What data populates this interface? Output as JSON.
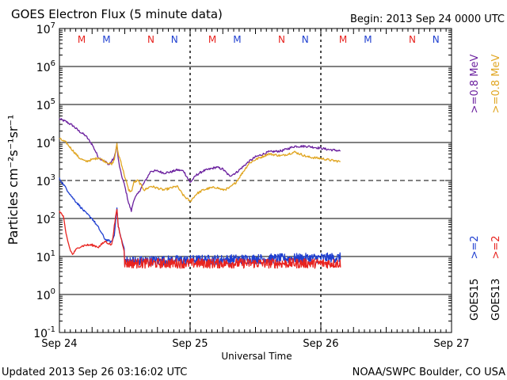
{
  "chart_data": {
    "type": "line",
    "title": "GOES Electron Flux (5 minute data)",
    "begin_label": "Begin: 2013 Sep 24 0000 UTC",
    "xlabel": "Universal Time",
    "ylabel": "Particles cm⁻²s⁻¹sr⁻¹",
    "x_unit": "days since 2013 Sep 24 0000 UTC",
    "xlim": [
      0,
      3
    ],
    "x_ticks": [
      {
        "value": 0,
        "label": "Sep 24"
      },
      {
        "value": 1,
        "label": "Sep 25"
      },
      {
        "value": 2,
        "label": "Sep 26"
      },
      {
        "value": 3,
        "label": "Sep 27"
      }
    ],
    "y_scale": "log",
    "ylim_exponent": [
      -1,
      7
    ],
    "y_ticks": [
      {
        "base": "10",
        "exp": "7",
        "value": 7
      },
      {
        "base": "10",
        "exp": "6",
        "value": 6
      },
      {
        "base": "10",
        "exp": "5",
        "value": 5
      },
      {
        "base": "10",
        "exp": "4",
        "value": 4
      },
      {
        "base": "10",
        "exp": "3",
        "value": 3
      },
      {
        "base": "10",
        "exp": "2",
        "value": 2
      },
      {
        "base": "10",
        "exp": "1",
        "value": 1
      },
      {
        "base": "10",
        "exp": "0",
        "value": 0
      },
      {
        "base": "10",
        "exp": "-1",
        "value": -1
      }
    ],
    "grid_major_exponents": [
      1,
      4,
      5,
      6
    ],
    "dashed_threshold_exponent": 3,
    "right_legend": [
      {
        "satellite": "GOES15",
        "band": ">=2",
        "band_color": "#1f3fd0",
        "band2": ">=0.8 MeV",
        "band2_color": "#6a1f9e"
      },
      {
        "satellite": "GOES13",
        "band": ">=2",
        "band_color": "#e8231f",
        "band2": ">=0.8 MeV",
        "band2_color": "#e0a520"
      }
    ],
    "markers": [
      {
        "letter": "M",
        "day": 0.17,
        "color": "#e8231f"
      },
      {
        "letter": "M",
        "day": 0.36,
        "color": "#1f3fd0"
      },
      {
        "letter": "N",
        "day": 0.7,
        "color": "#e8231f"
      },
      {
        "letter": "N",
        "day": 0.88,
        "color": "#1f3fd0"
      },
      {
        "letter": "M",
        "day": 1.17,
        "color": "#e8231f"
      },
      {
        "letter": "M",
        "day": 1.36,
        "color": "#1f3fd0"
      },
      {
        "letter": "N",
        "day": 1.7,
        "color": "#e8231f"
      },
      {
        "letter": "N",
        "day": 1.88,
        "color": "#1f3fd0"
      },
      {
        "letter": "M",
        "day": 2.17,
        "color": "#e8231f"
      },
      {
        "letter": "M",
        "day": 2.36,
        "color": "#1f3fd0"
      },
      {
        "letter": "N",
        "day": 2.7,
        "color": "#e8231f"
      },
      {
        "letter": "N",
        "day": 2.88,
        "color": "#1f3fd0"
      }
    ],
    "series": [
      {
        "name": "GOES15 >=0.8 MeV",
        "color": "#6a1f9e",
        "x": [
          0,
          0.05,
          0.1,
          0.15,
          0.2,
          0.25,
          0.3,
          0.35,
          0.38,
          0.42,
          0.44,
          0.45,
          0.47,
          0.5,
          0.53,
          0.55,
          0.57,
          0.6,
          0.65,
          0.7,
          0.75,
          0.8,
          0.85,
          0.9,
          0.95,
          1.0,
          1.05,
          1.1,
          1.15,
          1.2,
          1.25,
          1.3,
          1.35,
          1.4,
          1.45,
          1.5,
          1.6,
          1.7,
          1.8,
          1.9,
          2.0,
          2.05,
          2.1,
          2.15
        ],
        "log10": [
          4.62,
          4.55,
          4.45,
          4.3,
          4.18,
          3.95,
          3.6,
          3.5,
          3.42,
          3.6,
          3.95,
          3.55,
          3.2,
          2.85,
          2.4,
          2.2,
          2.5,
          2.65,
          2.95,
          3.25,
          3.25,
          3.2,
          3.22,
          3.28,
          3.25,
          2.95,
          3.15,
          3.25,
          3.3,
          3.35,
          3.3,
          3.12,
          3.2,
          3.35,
          3.5,
          3.62,
          3.75,
          3.78,
          3.9,
          3.9,
          3.85,
          3.82,
          3.8,
          3.78
        ]
      },
      {
        "name": "GOES13 >=0.8 MeV",
        "color": "#e0a520",
        "x": [
          0,
          0.05,
          0.1,
          0.15,
          0.2,
          0.25,
          0.3,
          0.35,
          0.4,
          0.42,
          0.44,
          0.45,
          0.47,
          0.5,
          0.53,
          0.55,
          0.57,
          0.6,
          0.65,
          0.7,
          0.75,
          0.8,
          0.85,
          0.9,
          0.95,
          1.0,
          1.05,
          1.1,
          1.15,
          1.2,
          1.25,
          1.3,
          1.35,
          1.4,
          1.45,
          1.5,
          1.6,
          1.7,
          1.8,
          1.9,
          2.0,
          2.05,
          2.1,
          2.15
        ],
        "log10": [
          4.1,
          4.0,
          3.8,
          3.6,
          3.5,
          3.55,
          3.6,
          3.5,
          3.42,
          3.55,
          3.95,
          3.7,
          3.5,
          3.1,
          2.75,
          2.7,
          2.95,
          3.0,
          2.75,
          2.85,
          2.8,
          2.75,
          2.8,
          2.85,
          2.6,
          2.45,
          2.65,
          2.75,
          2.8,
          2.82,
          2.75,
          2.8,
          2.95,
          3.2,
          3.45,
          3.55,
          3.7,
          3.65,
          3.75,
          3.62,
          3.58,
          3.55,
          3.52,
          3.5
        ]
      },
      {
        "name": "GOES15 >=2 MeV",
        "color": "#1f3fd0",
        "x": [
          0,
          0.03,
          0.06,
          0.1,
          0.15,
          0.2,
          0.25,
          0.3,
          0.35,
          0.4,
          0.42,
          0.44,
          0.45,
          0.47,
          0.5,
          0.5,
          2.15
        ],
        "log10": [
          3.05,
          2.9,
          2.75,
          2.55,
          2.35,
          2.15,
          2.0,
          1.75,
          1.45,
          1.38,
          1.55,
          2.3,
          1.8,
          1.5,
          1.15,
          0.85,
          0.85
        ],
        "noise_from_day": 0.5,
        "noise_base_log10": 0.88,
        "noise_end_log10": 0.97
      },
      {
        "name": "GOES13 >=2 MeV",
        "color": "#e8231f",
        "x": [
          0,
          0.03,
          0.05,
          0.08,
          0.1,
          0.12,
          0.15,
          0.2,
          0.25,
          0.3,
          0.35,
          0.4,
          0.42,
          0.44,
          0.45,
          0.47,
          0.5,
          0.5,
          2.15
        ],
        "log10": [
          2.2,
          2.05,
          1.6,
          1.2,
          1.05,
          1.15,
          1.25,
          1.3,
          1.3,
          1.25,
          1.4,
          1.3,
          1.8,
          2.25,
          1.8,
          1.5,
          1.1,
          0.85,
          0.85
        ],
        "noise_from_day": 0.5,
        "noise_base_log10": 0.82,
        "noise_end_log10": 0.82
      }
    ]
  },
  "footer": {
    "updated": "Updated 2013 Sep 26 03:16:02 UTC",
    "source": "NOAA/SWPC Boulder, CO USA"
  }
}
